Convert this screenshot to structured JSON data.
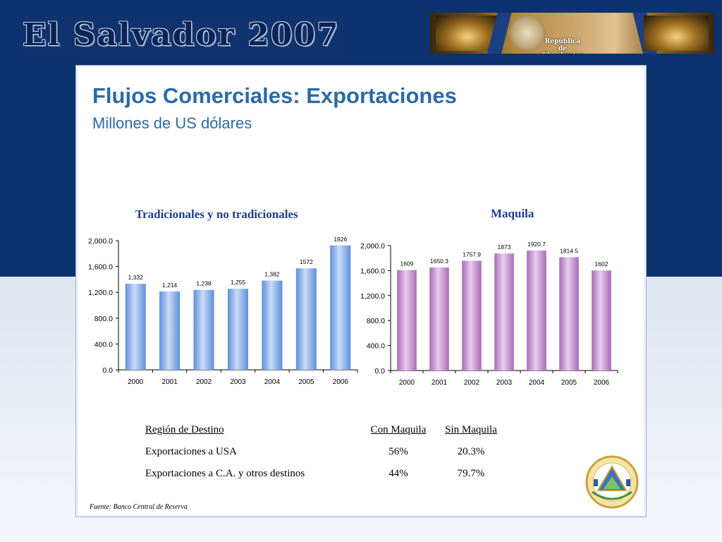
{
  "header": {
    "banner_title": "El Salvador 2007",
    "banner_label": "República de\nEl Salvador"
  },
  "slide": {
    "title": "Flujos Comerciales:  Exportaciones",
    "subtitle": "Millones de US dólares"
  },
  "chart_data": [
    {
      "type": "bar",
      "title": "Tradicionales y no tradicionales",
      "categories": [
        "2000",
        "2001",
        "2002",
        "2003",
        "2004",
        "2005",
        "2006"
      ],
      "values": [
        1332,
        1214,
        1238,
        1255,
        1382,
        1572,
        1926
      ],
      "data_labels": [
        "1,332",
        "1,214",
        "1,238",
        "1,255",
        "1,382",
        "1572",
        "1926"
      ],
      "ylim": [
        0,
        2000
      ],
      "yticks": [
        "0.0",
        "400.0",
        "800.0",
        "1,200.0",
        "1,600.0",
        "2,000.0"
      ],
      "bar_color": "#6f9be0",
      "grid": false
    },
    {
      "type": "bar",
      "title": "Maquila",
      "categories": [
        "2000",
        "2001",
        "2002",
        "2003",
        "2004",
        "2005",
        "2006"
      ],
      "values": [
        1609,
        1650.3,
        1757.9,
        1873,
        1920.7,
        1814.5,
        1602
      ],
      "data_labels": [
        "1609",
        "1650.3",
        "1757.9",
        "1873",
        "1920.7",
        "1814.5",
        "1602"
      ],
      "ylim": [
        0,
        2000
      ],
      "yticks": [
        "0.0",
        "400.0",
        "800.0",
        "1,200.0",
        "1,600.0",
        "2,000.0"
      ],
      "bar_color": "#b87cc4",
      "grid": false
    }
  ],
  "table": {
    "headers": [
      "Región de Destino",
      "Con Maquila",
      "Sin Maquila"
    ],
    "rows": [
      [
        "Exportaciones a USA",
        "56%",
        "20.3%"
      ],
      [
        "Exportaciones a C.A. y otros destinos",
        "44%",
        "79.7%"
      ]
    ]
  },
  "source": "Fuente: Banco Central de Reserva",
  "colors": {
    "background_dark": "#0c3270",
    "title_blue": "#2d6aa6",
    "chart_title_blue": "#1f3c8c"
  }
}
